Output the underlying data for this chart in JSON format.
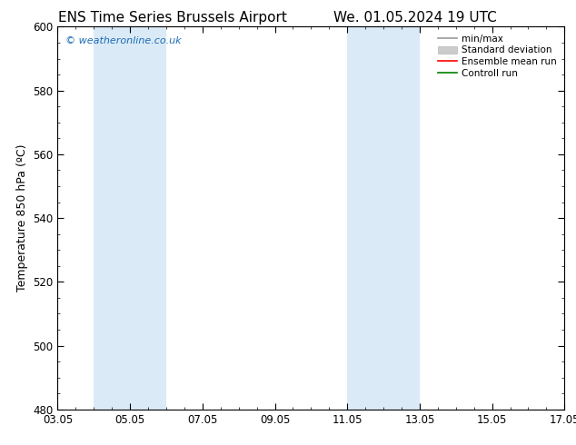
{
  "title_left": "ENS Time Series Brussels Airport",
  "title_right": "We. 01.05.2024 19 UTC",
  "ylabel": "Temperature 850 hPa (ºC)",
  "ylim": [
    480,
    600
  ],
  "yticks": [
    480,
    500,
    520,
    540,
    560,
    580,
    600
  ],
  "xtick_labels": [
    "03.05",
    "05.05",
    "07.05",
    "09.05",
    "11.05",
    "13.05",
    "15.05",
    "17.05"
  ],
  "xtick_positions": [
    0,
    2,
    4,
    6,
    8,
    10,
    12,
    14
  ],
  "xlim": [
    0,
    14
  ],
  "shaded_bands": [
    {
      "xstart": 1.0,
      "xend": 3.0,
      "color": "#daeaf7"
    },
    {
      "xstart": 8.0,
      "xend": 10.0,
      "color": "#daeaf7"
    }
  ],
  "watermark_text": "© weatheronline.co.uk",
  "watermark_color": "#1a6bb5",
  "legend_items": [
    {
      "label": "min/max",
      "color": "#999999",
      "lw": 1.2,
      "style": "line"
    },
    {
      "label": "Standard deviation",
      "color": "#cccccc",
      "lw": 5,
      "style": "bar"
    },
    {
      "label": "Ensemble mean run",
      "color": "#ff0000",
      "lw": 1.2,
      "style": "line"
    },
    {
      "label": "Controll run",
      "color": "#008000",
      "lw": 1.2,
      "style": "line"
    }
  ],
  "background_color": "#ffffff",
  "plot_bg_color": "#ffffff",
  "title_fontsize": 11,
  "axis_label_fontsize": 9,
  "tick_fontsize": 8.5,
  "watermark_fontsize": 8,
  "legend_fontsize": 7.5
}
